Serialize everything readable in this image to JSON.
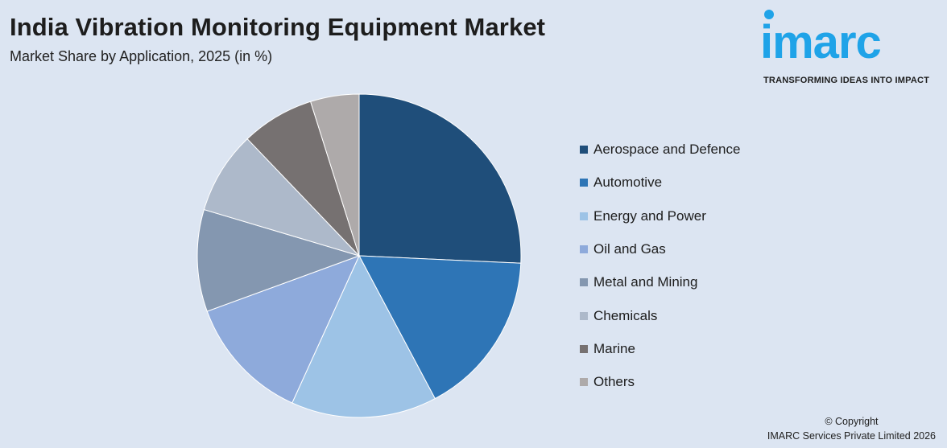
{
  "header": {
    "title": "India Vibration Monitoring Equipment Market",
    "subtitle": "Market Share by Application, 2025 (in %)"
  },
  "logo": {
    "wordmark": "imarc",
    "tagline": "TRANSFORMING IDEAS INTO IMPACT",
    "color": "#1fa3e8"
  },
  "chart_data": {
    "type": "pie",
    "title": "India Vibration Monitoring Equipment Market",
    "subtitle": "Market Share by Application, 2025 (in %)",
    "start_angle_deg": 0,
    "direction": "clockwise",
    "legend_position": "right",
    "slices": [
      {
        "label": "Aerospace and Defence",
        "value": 26.5,
        "color": "#1f4e7a"
      },
      {
        "label": "Automotive",
        "value": 17.0,
        "color": "#2e75b6"
      },
      {
        "label": "Energy and Power",
        "value": 15.0,
        "color": "#9dc3e6"
      },
      {
        "label": "Oil and Gas",
        "value": 13.0,
        "color": "#8eaadb"
      },
      {
        "label": "Metal and Mining",
        "value": 10.5,
        "color": "#8497b0"
      },
      {
        "label": "Chemicals",
        "value": 8.5,
        "color": "#adb9ca"
      },
      {
        "label": "Marine",
        "value": 7.5,
        "color": "#767171"
      },
      {
        "label": "Others",
        "value": 5.0,
        "color": "#aeaaaa"
      }
    ]
  },
  "footer": {
    "copyright_line1": "© Copyright",
    "copyright_line2": "IMARC Services Private Limited 2026"
  }
}
